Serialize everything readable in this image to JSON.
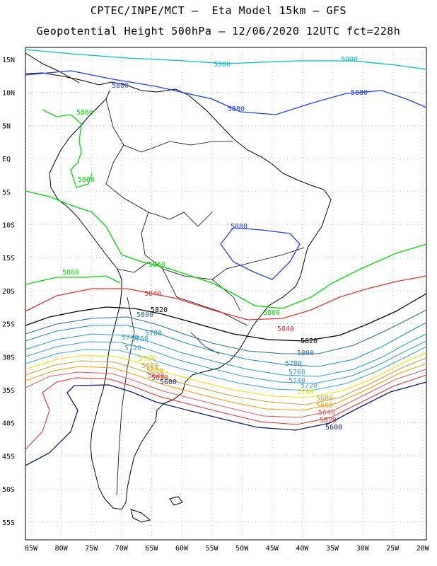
{
  "header": {
    "line1": "CPTEC/INPE/MCT –  Eta Model 15km – GFS",
    "line2": "Geopotential Height 500hPa – 12/06/2020 12UTC fct=228h"
  },
  "lat_ticks": [
    "15N",
    "10N",
    "5N",
    "EQ",
    "5S",
    "10S",
    "15S",
    "20S",
    "25S",
    "30S",
    "35S",
    "40S",
    "45S",
    "50S",
    "55S"
  ],
  "lon_ticks": [
    "85W",
    "80W",
    "75W",
    "70W",
    "65W",
    "60W",
    "55W",
    "50W",
    "45W",
    "40W",
    "35W",
    "30W",
    "25W",
    "20W"
  ],
  "contour_labels": {
    "c5900a": "5900",
    "c5900b": "5900",
    "c5880a": "5880",
    "c5880b": "5880",
    "c5880c": "5880",
    "c5880d": "5880",
    "c5860a": "5860",
    "c5860b": "5860",
    "c5860c": "5860",
    "c5860d": "5860",
    "c5860e": "5860",
    "c5840a": "5840",
    "c5840b": "5840",
    "c5820a": "5820",
    "c5820b": "5820",
    "c5800a": "5800",
    "c5800b": "5800",
    "c5780a": "5780",
    "c5780b": "5780",
    "c5760a": "5760",
    "c5760b": "5760",
    "c5740a": "5740",
    "c5740b": "5740",
    "c5720a": "5720",
    "c5720b": "5720",
    "c5700a": "5700",
    "c5700b": "5700",
    "c5680a": "5680",
    "c5680b": "5680",
    "c5660a": "5660",
    "c5660b": "5660",
    "c5640a": "5640",
    "c5640b": "5640",
    "c5620a": "5620",
    "c5620b": "5620",
    "c5600a": "5600",
    "c5600b": "5600"
  },
  "colors": {
    "c5900": "#00c0c0",
    "c5880": "#1e3cff",
    "c5860": "#00dc00",
    "c5840": "#e8332c",
    "c5820": "#000000",
    "c5800": "#2f6f9f",
    "c5780": "#1f8fc0",
    "c5760": "#2aa0d0",
    "c5740": "#3fa0c8",
    "c5720": "#40a8d8",
    "c5700": "#f0e600",
    "c5680": "#c8a040",
    "c5660": "#f0a000",
    "c5640": "#e06060",
    "c5620": "#e83030",
    "c5600": "#0a1a6a"
  }
}
